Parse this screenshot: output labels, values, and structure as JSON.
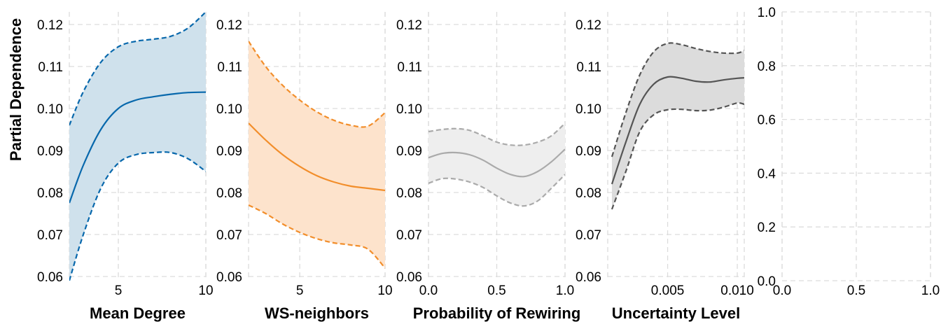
{
  "chart_data": [
    {
      "type": "line",
      "panel": 1,
      "xlabel": "Mean Degree",
      "ylabel": "Partial Dependence",
      "xlim": [
        2.2,
        10
      ],
      "ylim": [
        0.059,
        0.123
      ],
      "xticks": [
        {
          "v": 5,
          "label": "5"
        },
        {
          "v": 10,
          "label": "10"
        }
      ],
      "yticks": [
        {
          "v": 0.06,
          "label": "0.06"
        },
        {
          "v": 0.07,
          "label": "0.07"
        },
        {
          "v": 0.08,
          "label": "0.08"
        },
        {
          "v": 0.09,
          "label": "0.09"
        },
        {
          "v": 0.1,
          "label": "0.10"
        },
        {
          "v": 0.11,
          "label": "0.11"
        },
        {
          "v": 0.12,
          "label": "0.12"
        }
      ],
      "color": "#0868ac",
      "fill": "#cfe1ec",
      "grid": true,
      "series": [
        {
          "role": "mean",
          "x": [
            2.2,
            3,
            4,
            5,
            6,
            7,
            8,
            9,
            10
          ],
          "values": [
            0.0775,
            0.0865,
            0.095,
            0.1,
            0.102,
            0.1028,
            0.1034,
            0.1038,
            0.1039
          ]
        },
        {
          "role": "upper",
          "x": [
            2.2,
            3,
            4,
            5,
            6,
            7,
            8,
            9,
            10
          ],
          "values": [
            0.096,
            0.104,
            0.111,
            0.1147,
            0.116,
            0.1165,
            0.1172,
            0.1192,
            0.123
          ]
        },
        {
          "role": "lower",
          "x": [
            2.2,
            3,
            4,
            5,
            6,
            7,
            8,
            9,
            10
          ],
          "values": [
            0.059,
            0.07,
            0.081,
            0.087,
            0.089,
            0.0895,
            0.0895,
            0.088,
            0.085
          ]
        }
      ]
    },
    {
      "type": "line",
      "panel": 2,
      "xlabel": "WS-neighbors",
      "xlim": [
        2,
        10
      ],
      "ylim": [
        0.059,
        0.123
      ],
      "xticks": [
        {
          "v": 5,
          "label": "5"
        },
        {
          "v": 10,
          "label": "10"
        }
      ],
      "yticks": [
        {
          "v": 0.06,
          "label": "0.06"
        },
        {
          "v": 0.07,
          "label": "0.07"
        },
        {
          "v": 0.08,
          "label": "0.08"
        },
        {
          "v": 0.09,
          "label": "0.09"
        },
        {
          "v": 0.1,
          "label": "0.10"
        },
        {
          "v": 0.11,
          "label": "0.11"
        },
        {
          "v": 0.12,
          "label": "0.12"
        }
      ],
      "color": "#f28e2b",
      "fill": "#fde3cc",
      "grid": true,
      "series": [
        {
          "role": "mean",
          "x": [
            2,
            3,
            4,
            5,
            6,
            7,
            8,
            9,
            10
          ],
          "values": [
            0.0965,
            0.0925,
            0.089,
            0.0862,
            0.084,
            0.0825,
            0.0815,
            0.081,
            0.0805
          ]
        },
        {
          "role": "upper",
          "x": [
            2,
            3,
            4,
            5,
            6,
            7,
            8,
            9,
            10
          ],
          "values": [
            0.116,
            0.11,
            0.1055,
            0.102,
            0.0992,
            0.0972,
            0.096,
            0.0958,
            0.099
          ]
        },
        {
          "role": "lower",
          "x": [
            2,
            3,
            4,
            5,
            6,
            7,
            8,
            9,
            10
          ],
          "values": [
            0.077,
            0.075,
            0.0725,
            0.0705,
            0.069,
            0.068,
            0.0675,
            0.0665,
            0.062
          ]
        }
      ]
    },
    {
      "type": "line",
      "panel": 3,
      "xlabel": "Probability of Rewiring",
      "xlim": [
        0,
        1
      ],
      "ylim": [
        0.059,
        0.123
      ],
      "xticks": [
        {
          "v": 0,
          "label": "0.0"
        },
        {
          "v": 0.5,
          "label": "0.5"
        },
        {
          "v": 1,
          "label": "1.0"
        }
      ],
      "yticks": [
        {
          "v": 0.06,
          "label": "0.06"
        },
        {
          "v": 0.07,
          "label": "0.07"
        },
        {
          "v": 0.08,
          "label": "0.08"
        },
        {
          "v": 0.09,
          "label": "0.09"
        },
        {
          "v": 0.1,
          "label": "0.10"
        },
        {
          "v": 0.11,
          "label": "0.11"
        },
        {
          "v": 0.12,
          "label": "0.12"
        }
      ],
      "color": "#aaaaaa",
      "fill": "#eeeeee",
      "grid": true,
      "series": [
        {
          "role": "mean",
          "x": [
            0,
            0.1,
            0.2,
            0.3,
            0.4,
            0.5,
            0.6,
            0.7,
            0.8,
            0.9,
            1.0
          ],
          "values": [
            0.0883,
            0.0893,
            0.0895,
            0.089,
            0.0877,
            0.0858,
            0.0843,
            0.0838,
            0.085,
            0.0873,
            0.0903
          ]
        },
        {
          "role": "upper",
          "x": [
            0,
            0.1,
            0.2,
            0.3,
            0.4,
            0.5,
            0.6,
            0.7,
            0.8,
            0.9,
            1.0
          ],
          "values": [
            0.0945,
            0.095,
            0.0952,
            0.0948,
            0.0935,
            0.092,
            0.0913,
            0.0913,
            0.092,
            0.0935,
            0.0965
          ]
        },
        {
          "role": "lower",
          "x": [
            0,
            0.1,
            0.2,
            0.3,
            0.4,
            0.5,
            0.6,
            0.7,
            0.8,
            0.9,
            1.0
          ],
          "values": [
            0.0822,
            0.0833,
            0.0832,
            0.0825,
            0.0812,
            0.0792,
            0.0775,
            0.0768,
            0.078,
            0.081,
            0.0843
          ]
        }
      ]
    },
    {
      "type": "line",
      "panel": 4,
      "xlabel": "Uncertainty Level",
      "xlim": [
        0.0007,
        0.0105
      ],
      "ylim": [
        0.059,
        0.123
      ],
      "xticks": [
        {
          "v": 0.005,
          "label": "0.005"
        },
        {
          "v": 0.01,
          "label": "0.010"
        }
      ],
      "yticks": [
        {
          "v": 0.06,
          "label": "0.06"
        },
        {
          "v": 0.07,
          "label": "0.07"
        },
        {
          "v": 0.08,
          "label": "0.08"
        },
        {
          "v": 0.09,
          "label": "0.09"
        },
        {
          "v": 0.1,
          "label": "0.10"
        },
        {
          "v": 0.11,
          "label": "0.11"
        },
        {
          "v": 0.12,
          "label": "0.12"
        }
      ],
      "color": "#555555",
      "fill": "#dcdcdc",
      "grid": true,
      "series": [
        {
          "role": "mean",
          "x": [
            0.001,
            0.002,
            0.003,
            0.004,
            0.005,
            0.006,
            0.007,
            0.008,
            0.009,
            0.01,
            0.0105
          ],
          "values": [
            0.082,
            0.092,
            0.101,
            0.1058,
            0.1075,
            0.1072,
            0.1065,
            0.1063,
            0.1068,
            0.1072,
            0.1073
          ]
        },
        {
          "role": "upper",
          "x": [
            0.001,
            0.002,
            0.003,
            0.004,
            0.005,
            0.006,
            0.007,
            0.008,
            0.009,
            0.01,
            0.0105
          ],
          "values": [
            0.0885,
            0.099,
            0.108,
            0.1135,
            0.1155,
            0.1152,
            0.1143,
            0.1136,
            0.1132,
            0.1132,
            0.1138
          ]
        },
        {
          "role": "lower",
          "x": [
            0.001,
            0.002,
            0.003,
            0.004,
            0.005,
            0.006,
            0.007,
            0.008,
            0.009,
            0.01,
            0.0105
          ],
          "values": [
            0.076,
            0.085,
            0.0945,
            0.0985,
            0.0997,
            0.0998,
            0.0995,
            0.0996,
            0.1003,
            0.1013,
            0.101
          ]
        }
      ]
    },
    {
      "type": "line",
      "panel": 5,
      "xlabel": "",
      "xlim": [
        0,
        1
      ],
      "ylim": [
        0,
        1
      ],
      "xticks": [
        {
          "v": 0,
          "label": "0.0"
        },
        {
          "v": 0.5,
          "label": "0.5"
        },
        {
          "v": 1,
          "label": "1.0"
        }
      ],
      "yticks": [
        {
          "v": 0,
          "label": "0.0"
        },
        {
          "v": 0.2,
          "label": "0.2"
        },
        {
          "v": 0.4,
          "label": "0.4"
        },
        {
          "v": 0.6,
          "label": "0.6"
        },
        {
          "v": 0.8,
          "label": "0.8"
        },
        {
          "v": 1.0,
          "label": "1.0"
        }
      ],
      "grid": true,
      "series": []
    }
  ]
}
